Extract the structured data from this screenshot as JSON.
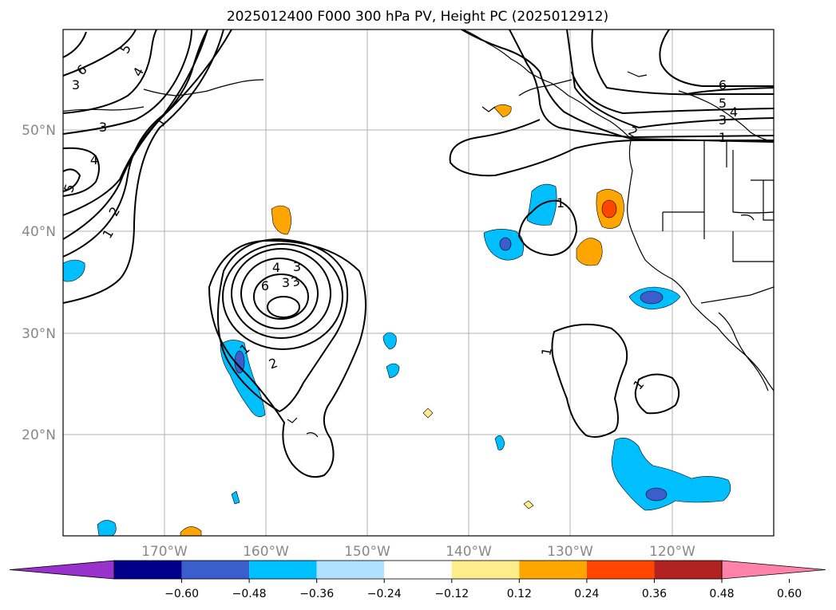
{
  "title": "2025012400 F000 300 hPa PV, Height PC (2025012912)",
  "lat_labels": [
    "50°N",
    "40°N",
    "30°N",
    "20°N"
  ],
  "lon_labels": [
    "170°W",
    "160°W",
    "150°W",
    "140°W",
    "130°W",
    "120°W"
  ],
  "colorbar": {
    "ticks": [
      "−0.60",
      "−0.48",
      "−0.36",
      "−0.24",
      "−0.12",
      "0.12",
      "0.24",
      "0.36",
      "0.48",
      "0.60"
    ],
    "colors": [
      "#9932cc",
      "#00008b",
      "#3a5fcd",
      "#00bfff",
      "#b0e2ff",
      "#ffffff",
      "#ffec8b",
      "#ffa500",
      "#ff4500",
      "#b22222",
      "#ff82ab"
    ]
  },
  "contour_labels": [
    "6",
    "5",
    "4",
    "3",
    "1",
    "3",
    "4",
    "5",
    "2",
    "1",
    "6",
    "5",
    "4",
    "3",
    "2",
    "1",
    "4",
    "3",
    "3",
    "6",
    "3",
    "2",
    "1",
    "1",
    "1",
    "1"
  ]
}
